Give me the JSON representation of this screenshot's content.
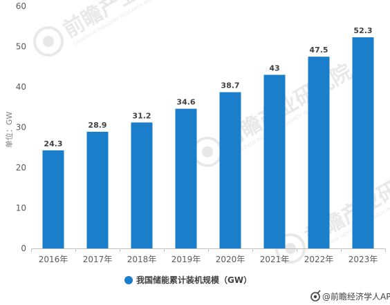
{
  "chart_data": {
    "type": "bar",
    "categories": [
      "2016年",
      "2017年",
      "2018年",
      "2019年",
      "2020年",
      "2021年",
      "2022年",
      "2023年"
    ],
    "series": [
      {
        "name": "我国储能累计装机规模（GW）",
        "values": [
          24.3,
          28.9,
          31.2,
          34.6,
          38.7,
          43,
          47.5,
          52.3
        ],
        "labels": [
          "24.3",
          "28.9",
          "31.2",
          "34.6",
          "38.7",
          "43",
          "47.5",
          "52.3"
        ],
        "color": "#1a7ecb"
      }
    ],
    "title": "",
    "xlabel": "",
    "ylabel": "单位：GW",
    "ylim": [
      0,
      60
    ],
    "yticks": [
      0,
      10,
      20,
      30,
      40,
      50,
      60
    ],
    "grid": false,
    "legend_position": "bottom"
  },
  "watermark": {
    "brand": "前瞻产业研究院",
    "sub": "QIANZHAN INDUSTRY RESEARCH INSTITUTE"
  },
  "source": {
    "text": "@前瞻经济学人APP",
    "icon": "qianzhan-logo-icon"
  },
  "colors": {
    "bar": "#1a7ecb",
    "axis": "#bfbfbf",
    "text": "#595959"
  }
}
